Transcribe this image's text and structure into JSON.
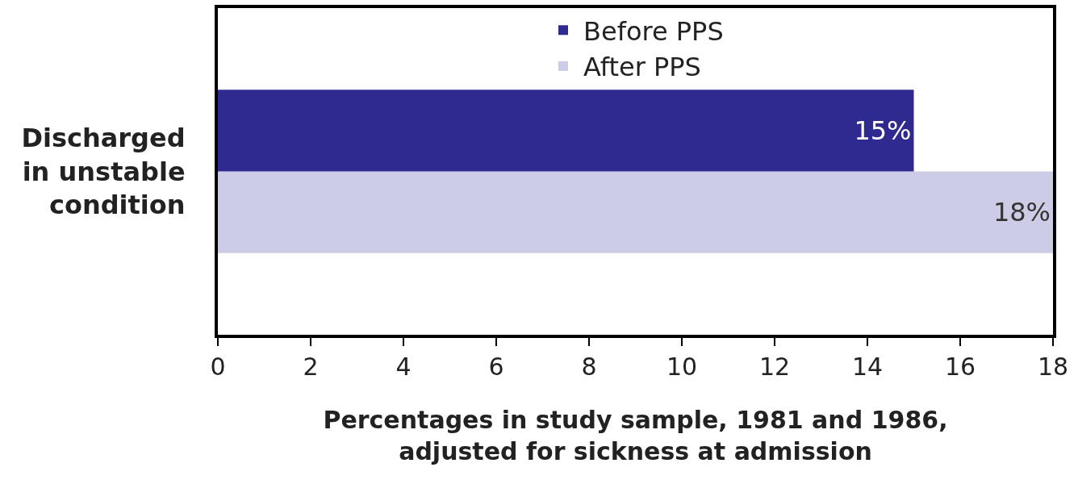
{
  "chart_data": {
    "type": "bar",
    "orientation": "horizontal",
    "xlabel": "Percentages in study sample, 1981 and 1986,\nadjusted for sickness at admission",
    "categories": [
      "Discharged\nin unstable\ncondition"
    ],
    "series": [
      {
        "name": "Before PPS",
        "color": "#2e2a8f",
        "values": [
          15
        ],
        "value_labels": [
          "15%"
        ]
      },
      {
        "name": "After PPS",
        "color": "#cccce6",
        "values": [
          18
        ],
        "value_labels": [
          "18%"
        ]
      }
    ],
    "xlim": [
      0,
      18
    ],
    "xticks": [
      0,
      2,
      4,
      6,
      8,
      10,
      12,
      14,
      16,
      18
    ],
    "legend": "top"
  }
}
